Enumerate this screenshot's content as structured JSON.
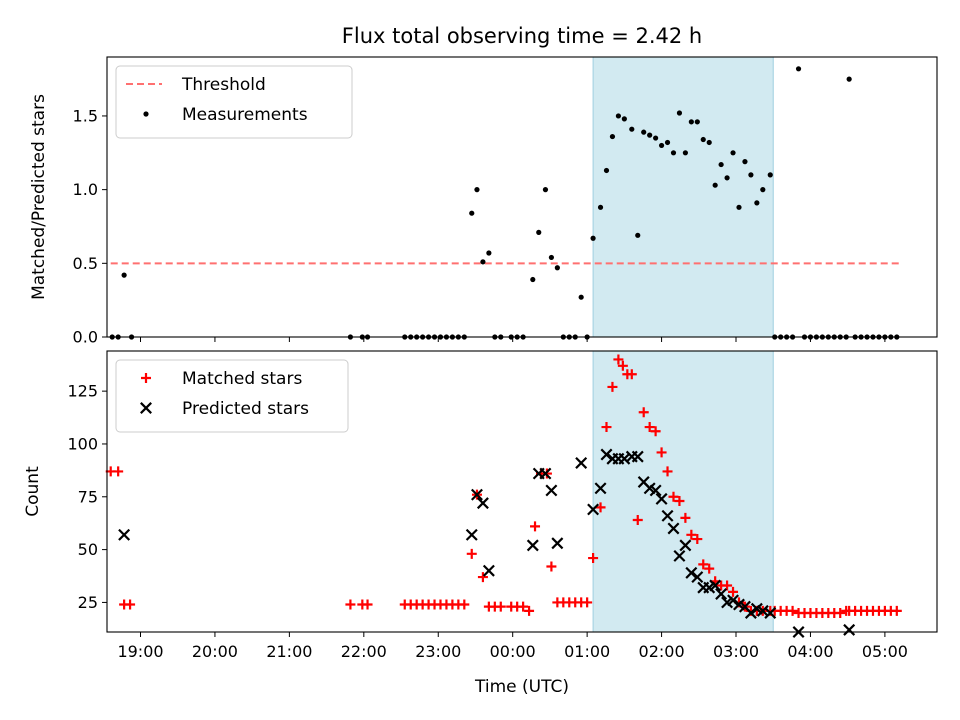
{
  "chart_data": {
    "title": "Flux total observing time = 2.42 h",
    "xlabel": "Time (UTC)",
    "x_ticks": [
      "19:00",
      "20:00",
      "21:00",
      "22:00",
      "23:00",
      "00:00",
      "01:00",
      "02:00",
      "03:00",
      "04:00",
      "05:00"
    ],
    "x_tick_hours": [
      19,
      20,
      21,
      22,
      23,
      24,
      25,
      26,
      27,
      28,
      29
    ],
    "xlim": [
      18.55,
      29.7
    ],
    "shaded_interval": [
      25.08,
      27.5
    ],
    "shade_color": "#add8e6",
    "panels": [
      {
        "id": "ratio",
        "type": "scatter",
        "ylabel": "Matched/Predicted stars",
        "ylim": [
          0,
          1.9
        ],
        "yticks": [
          0.0,
          0.5,
          1.0,
          1.5
        ],
        "ytick_labels": [
          "0.0",
          "0.5",
          "1.0",
          "1.5"
        ],
        "legend_position": "top-left",
        "threshold": {
          "name": "Threshold",
          "value": 0.5,
          "x_range": [
            18.6,
            29.2
          ],
          "color": "#ff7070"
        },
        "series": [
          {
            "name": "Measurements",
            "marker": "dot",
            "color": "#000000",
            "points": [
              [
                18.62,
                0
              ],
              [
                18.7,
                0
              ],
              [
                18.78,
                0.42
              ],
              [
                18.88,
                0
              ],
              [
                21.82,
                0
              ],
              [
                21.98,
                0
              ],
              [
                22.05,
                0
              ],
              [
                22.55,
                0
              ],
              [
                22.63,
                0
              ],
              [
                22.71,
                0
              ],
              [
                22.79,
                0
              ],
              [
                22.87,
                0
              ],
              [
                22.95,
                0
              ],
              [
                23.03,
                0
              ],
              [
                23.11,
                0
              ],
              [
                23.19,
                0
              ],
              [
                23.27,
                0
              ],
              [
                23.35,
                0
              ],
              [
                23.45,
                0.84
              ],
              [
                23.52,
                1.0
              ],
              [
                23.6,
                0.51
              ],
              [
                23.68,
                0.57
              ],
              [
                23.76,
                0
              ],
              [
                23.84,
                0
              ],
              [
                23.98,
                0
              ],
              [
                24.06,
                0
              ],
              [
                24.14,
                0
              ],
              [
                24.27,
                0.39
              ],
              [
                24.35,
                0.71
              ],
              [
                24.44,
                1.0
              ],
              [
                24.52,
                0.54
              ],
              [
                24.6,
                0.47
              ],
              [
                24.68,
                0
              ],
              [
                24.76,
                0
              ],
              [
                24.84,
                0
              ],
              [
                24.92,
                0.27
              ],
              [
                25.0,
                0
              ],
              [
                25.08,
                0.67
              ],
              [
                25.18,
                0.88
              ],
              [
                25.26,
                1.13
              ],
              [
                25.34,
                1.36
              ],
              [
                25.42,
                1.5
              ],
              [
                25.5,
                1.48
              ],
              [
                25.6,
                1.41
              ],
              [
                25.68,
                0.69
              ],
              [
                25.76,
                1.39
              ],
              [
                25.84,
                1.37
              ],
              [
                25.92,
                1.35
              ],
              [
                26.0,
                1.3
              ],
              [
                26.08,
                1.32
              ],
              [
                26.16,
                1.25
              ],
              [
                26.24,
                1.52
              ],
              [
                26.32,
                1.25
              ],
              [
                26.4,
                1.46
              ],
              [
                26.48,
                1.46
              ],
              [
                26.56,
                1.34
              ],
              [
                26.64,
                1.32
              ],
              [
                26.72,
                1.03
              ],
              [
                26.8,
                1.17
              ],
              [
                26.88,
                1.08
              ],
              [
                26.96,
                1.25
              ],
              [
                27.04,
                0.88
              ],
              [
                27.12,
                1.19
              ],
              [
                27.2,
                1.1
              ],
              [
                27.28,
                0.91
              ],
              [
                27.36,
                1.0
              ],
              [
                27.46,
                1.1
              ],
              [
                27.52,
                0
              ],
              [
                27.6,
                0
              ],
              [
                27.68,
                0
              ],
              [
                27.76,
                0
              ],
              [
                27.84,
                1.82
              ],
              [
                27.92,
                0
              ],
              [
                28.0,
                0
              ],
              [
                28.08,
                0
              ],
              [
                28.16,
                0
              ],
              [
                28.24,
                0
              ],
              [
                28.32,
                0
              ],
              [
                28.4,
                0
              ],
              [
                28.48,
                0
              ],
              [
                28.52,
                1.75
              ],
              [
                28.6,
                0
              ],
              [
                28.68,
                0
              ],
              [
                28.76,
                0
              ],
              [
                28.84,
                0
              ],
              [
                28.92,
                0
              ],
              [
                29.0,
                0
              ],
              [
                29.08,
                0
              ],
              [
                29.16,
                0
              ]
            ]
          }
        ]
      },
      {
        "id": "counts",
        "type": "scatter",
        "ylabel": "Count",
        "ylim": [
          11,
          144
        ],
        "yticks": [
          25,
          50,
          75,
          100,
          125
        ],
        "ytick_labels": [
          "25",
          "50",
          "75",
          "100",
          "125"
        ],
        "legend_position": "top-left",
        "series": [
          {
            "name": "Matched stars",
            "marker": "plus",
            "color": "#ff0000",
            "points": [
              [
                18.6,
                87
              ],
              [
                18.7,
                87
              ],
              [
                18.78,
                24
              ],
              [
                18.86,
                24
              ],
              [
                21.82,
                24
              ],
              [
                21.98,
                24
              ],
              [
                22.05,
                24
              ],
              [
                22.55,
                24
              ],
              [
                22.63,
                24
              ],
              [
                22.71,
                24
              ],
              [
                22.79,
                24
              ],
              [
                22.87,
                24
              ],
              [
                22.95,
                24
              ],
              [
                23.03,
                24
              ],
              [
                23.11,
                24
              ],
              [
                23.19,
                24
              ],
              [
                23.27,
                24
              ],
              [
                23.35,
                24
              ],
              [
                23.45,
                48
              ],
              [
                23.52,
                76
              ],
              [
                23.6,
                37
              ],
              [
                23.68,
                23
              ],
              [
                23.76,
                23
              ],
              [
                23.84,
                23
              ],
              [
                23.98,
                23
              ],
              [
                24.06,
                23
              ],
              [
                24.14,
                23
              ],
              [
                24.22,
                21
              ],
              [
                24.3,
                61
              ],
              [
                24.38,
                86
              ],
              [
                24.46,
                86
              ],
              [
                24.52,
                42
              ],
              [
                24.6,
                25
              ],
              [
                24.68,
                25
              ],
              [
                24.76,
                25
              ],
              [
                24.84,
                25
              ],
              [
                24.92,
                25
              ],
              [
                25.0,
                25
              ],
              [
                25.08,
                46
              ],
              [
                25.18,
                70
              ],
              [
                25.26,
                108
              ],
              [
                25.34,
                127
              ],
              [
                25.42,
                140
              ],
              [
                25.48,
                137
              ],
              [
                25.54,
                133
              ],
              [
                25.6,
                133
              ],
              [
                25.68,
                64
              ],
              [
                25.76,
                115
              ],
              [
                25.84,
                108
              ],
              [
                25.92,
                106
              ],
              [
                26.0,
                96
              ],
              [
                26.08,
                87
              ],
              [
                26.16,
                75
              ],
              [
                26.24,
                73
              ],
              [
                26.32,
                65
              ],
              [
                26.4,
                57
              ],
              [
                26.48,
                55
              ],
              [
                26.56,
                43
              ],
              [
                26.64,
                41
              ],
              [
                26.72,
                35
              ],
              [
                26.8,
                33
              ],
              [
                26.88,
                33
              ],
              [
                26.96,
                30
              ],
              [
                27.04,
                25
              ],
              [
                27.12,
                23
              ],
              [
                27.2,
                21
              ],
              [
                27.28,
                21
              ],
              [
                27.36,
                21
              ],
              [
                27.46,
                21
              ],
              [
                27.52,
                21
              ],
              [
                27.6,
                21
              ],
              [
                27.68,
                21
              ],
              [
                27.76,
                21
              ],
              [
                27.84,
                20
              ],
              [
                27.92,
                20
              ],
              [
                28.0,
                20
              ],
              [
                28.08,
                20
              ],
              [
                28.16,
                20
              ],
              [
                28.24,
                20
              ],
              [
                28.32,
                20
              ],
              [
                28.4,
                20
              ],
              [
                28.48,
                21
              ],
              [
                28.52,
                21
              ],
              [
                28.6,
                21
              ],
              [
                28.68,
                21
              ],
              [
                28.76,
                21
              ],
              [
                28.84,
                21
              ],
              [
                28.92,
                21
              ],
              [
                29.0,
                21
              ],
              [
                29.08,
                21
              ],
              [
                29.16,
                21
              ]
            ]
          },
          {
            "name": "Predicted stars",
            "marker": "x",
            "color": "#000000",
            "points": [
              [
                18.78,
                57
              ],
              [
                23.45,
                57
              ],
              [
                23.52,
                76
              ],
              [
                23.6,
                72
              ],
              [
                23.68,
                40
              ],
              [
                24.27,
                52
              ],
              [
                24.35,
                86
              ],
              [
                24.44,
                86
              ],
              [
                24.52,
                78
              ],
              [
                24.6,
                53
              ],
              [
                24.92,
                91
              ],
              [
                25.08,
                69
              ],
              [
                25.18,
                79
              ],
              [
                25.26,
                95
              ],
              [
                25.34,
                93
              ],
              [
                25.42,
                93
              ],
              [
                25.5,
                93
              ],
              [
                25.6,
                94
              ],
              [
                25.68,
                94
              ],
              [
                25.76,
                82
              ],
              [
                25.84,
                79
              ],
              [
                25.92,
                78
              ],
              [
                26.0,
                74
              ],
              [
                26.08,
                66
              ],
              [
                26.16,
                60
              ],
              [
                26.24,
                47
              ],
              [
                26.32,
                52
              ],
              [
                26.4,
                39
              ],
              [
                26.48,
                37
              ],
              [
                26.56,
                32
              ],
              [
                26.64,
                32
              ],
              [
                26.72,
                33
              ],
              [
                26.8,
                29
              ],
              [
                26.88,
                25
              ],
              [
                26.96,
                26
              ],
              [
                27.04,
                24
              ],
              [
                27.12,
                23
              ],
              [
                27.2,
                20
              ],
              [
                27.28,
                22
              ],
              [
                27.36,
                21
              ],
              [
                27.46,
                20
              ],
              [
                27.84,
                11
              ],
              [
                28.52,
                12
              ]
            ]
          }
        ]
      }
    ]
  }
}
